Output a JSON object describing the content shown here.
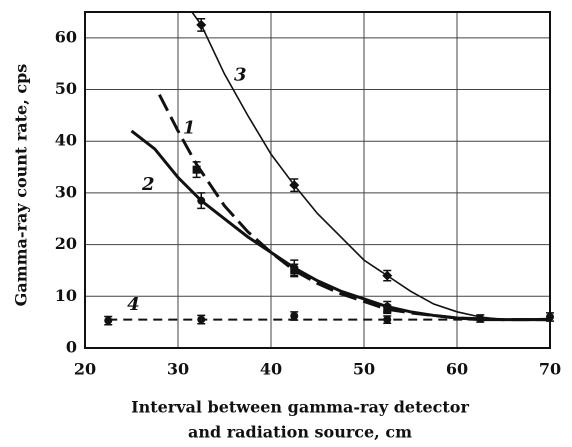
{
  "chart_data": {
    "type": "line",
    "xlabel": [
      "Interval between gamma-ray detector",
      "and radiation source, cm"
    ],
    "ylabel": "Gamma-ray count rate, cps",
    "xlim": [
      20,
      70
    ],
    "ylim": [
      0,
      65
    ],
    "xticks": [
      20,
      30,
      40,
      50,
      60,
      70
    ],
    "yticks": [
      0,
      10,
      20,
      30,
      40,
      50,
      60
    ],
    "grid": true,
    "series": [
      {
        "name": "1",
        "color": "#111111",
        "style": "dash",
        "x": [
          28,
          30,
          32,
          35,
          37.5,
          40,
          42.5,
          45,
          47.5,
          50,
          52.5,
          55,
          60,
          65,
          70
        ],
        "values": [
          49,
          42,
          35.5,
          27.5,
          22.5,
          18.5,
          15,
          12.5,
          10.5,
          9,
          7.5,
          6.8,
          5.8,
          5.5,
          5.5
        ],
        "points": {
          "marker": "square",
          "x": [
            32,
            42.5,
            52.5
          ],
          "values": [
            34.5,
            15,
            7.5
          ],
          "errors": [
            1.5,
            1.2,
            0.8
          ]
        }
      },
      {
        "name": "2",
        "color": "#111111",
        "style": "solid-thick",
        "x": [
          25,
          27.5,
          30,
          32.5,
          35,
          37.5,
          40,
          42.5,
          45,
          47.5,
          50,
          52.5,
          55,
          57.5,
          60,
          62.5,
          65,
          70
        ],
        "values": [
          42,
          38.5,
          33,
          28.5,
          25,
          21.5,
          18.5,
          15.5,
          13,
          11,
          9.5,
          8,
          7,
          6.3,
          5.8,
          5.5,
          5.5,
          5.5
        ],
        "points": {
          "marker": "circle",
          "x": [
            32.5,
            42.5,
            52.5
          ],
          "values": [
            28.5,
            15.5,
            8
          ],
          "errors": [
            1.5,
            1.5,
            1
          ]
        }
      },
      {
        "name": "3",
        "color": "#111111",
        "style": "solid",
        "x": [
          31.5,
          32.5,
          35,
          37.5,
          40,
          42.5,
          45,
          47.5,
          50,
          52.5,
          55,
          57.5,
          60,
          62.5,
          65,
          70
        ],
        "values": [
          65,
          62.5,
          53,
          45,
          37.5,
          31.5,
          26,
          21.5,
          17,
          14,
          11,
          8.5,
          7,
          6,
          5.5,
          5.7
        ],
        "points": {
          "marker": "diamond",
          "x": [
            32.5,
            42.5,
            52.5
          ],
          "values": [
            62.5,
            31.5,
            14
          ],
          "errors": [
            1.2,
            1.2,
            1
          ]
        }
      },
      {
        "name": "4",
        "color": "#111111",
        "style": "dashed",
        "x": [
          22.5,
          70
        ],
        "values": [
          5.5,
          5.5
        ],
        "points": {
          "marker": "circle",
          "x": [
            22.5,
            32.5,
            42.5,
            52.5,
            62.5,
            70
          ],
          "values": [
            5.3,
            5.5,
            6.2,
            5.5,
            5.7,
            6
          ],
          "errors": [
            0.8,
            0.8,
            0.8,
            0.7,
            0.7,
            0.8
          ]
        }
      }
    ]
  }
}
